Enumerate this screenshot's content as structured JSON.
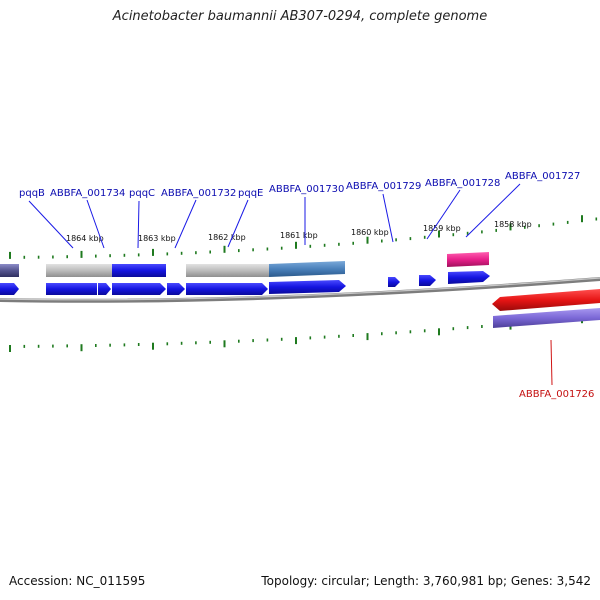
{
  "title": "Acinetobacter baumannii AB307-0294, complete genome",
  "footer": {
    "accession": "Accession: NC_011595",
    "topology": "Topology: circular; Length: 3,760,981 bp; Genes: 3,542"
  },
  "colors": {
    "cds_blue": "#1a1ae6",
    "gene_gray": "#bdbdbd",
    "steel_blue": "#4f86bf",
    "pink": "#e8208a",
    "red": "#e61515",
    "purple": "#7b68d6",
    "tick_green": "#1f7a1f",
    "label_blue": "#0b0bb0",
    "label_red": "#c41010",
    "backbone": "#8c8c8c"
  },
  "scale_labels": [
    "1864 kbp",
    "1863 kbp",
    "1862 kbp",
    "1861 kbp",
    "1860 kbp",
    "1859 kbp",
    "1858 kbp"
  ],
  "gene_labels": [
    "pqqB",
    "ABBFA_001734",
    "pqqC",
    "ABBFA_001732",
    "pqqE",
    "ABBFA_001730",
    "ABBFA_001729",
    "ABBFA_001728",
    "ABBFA_001727",
    "ABBFA_001726"
  ]
}
